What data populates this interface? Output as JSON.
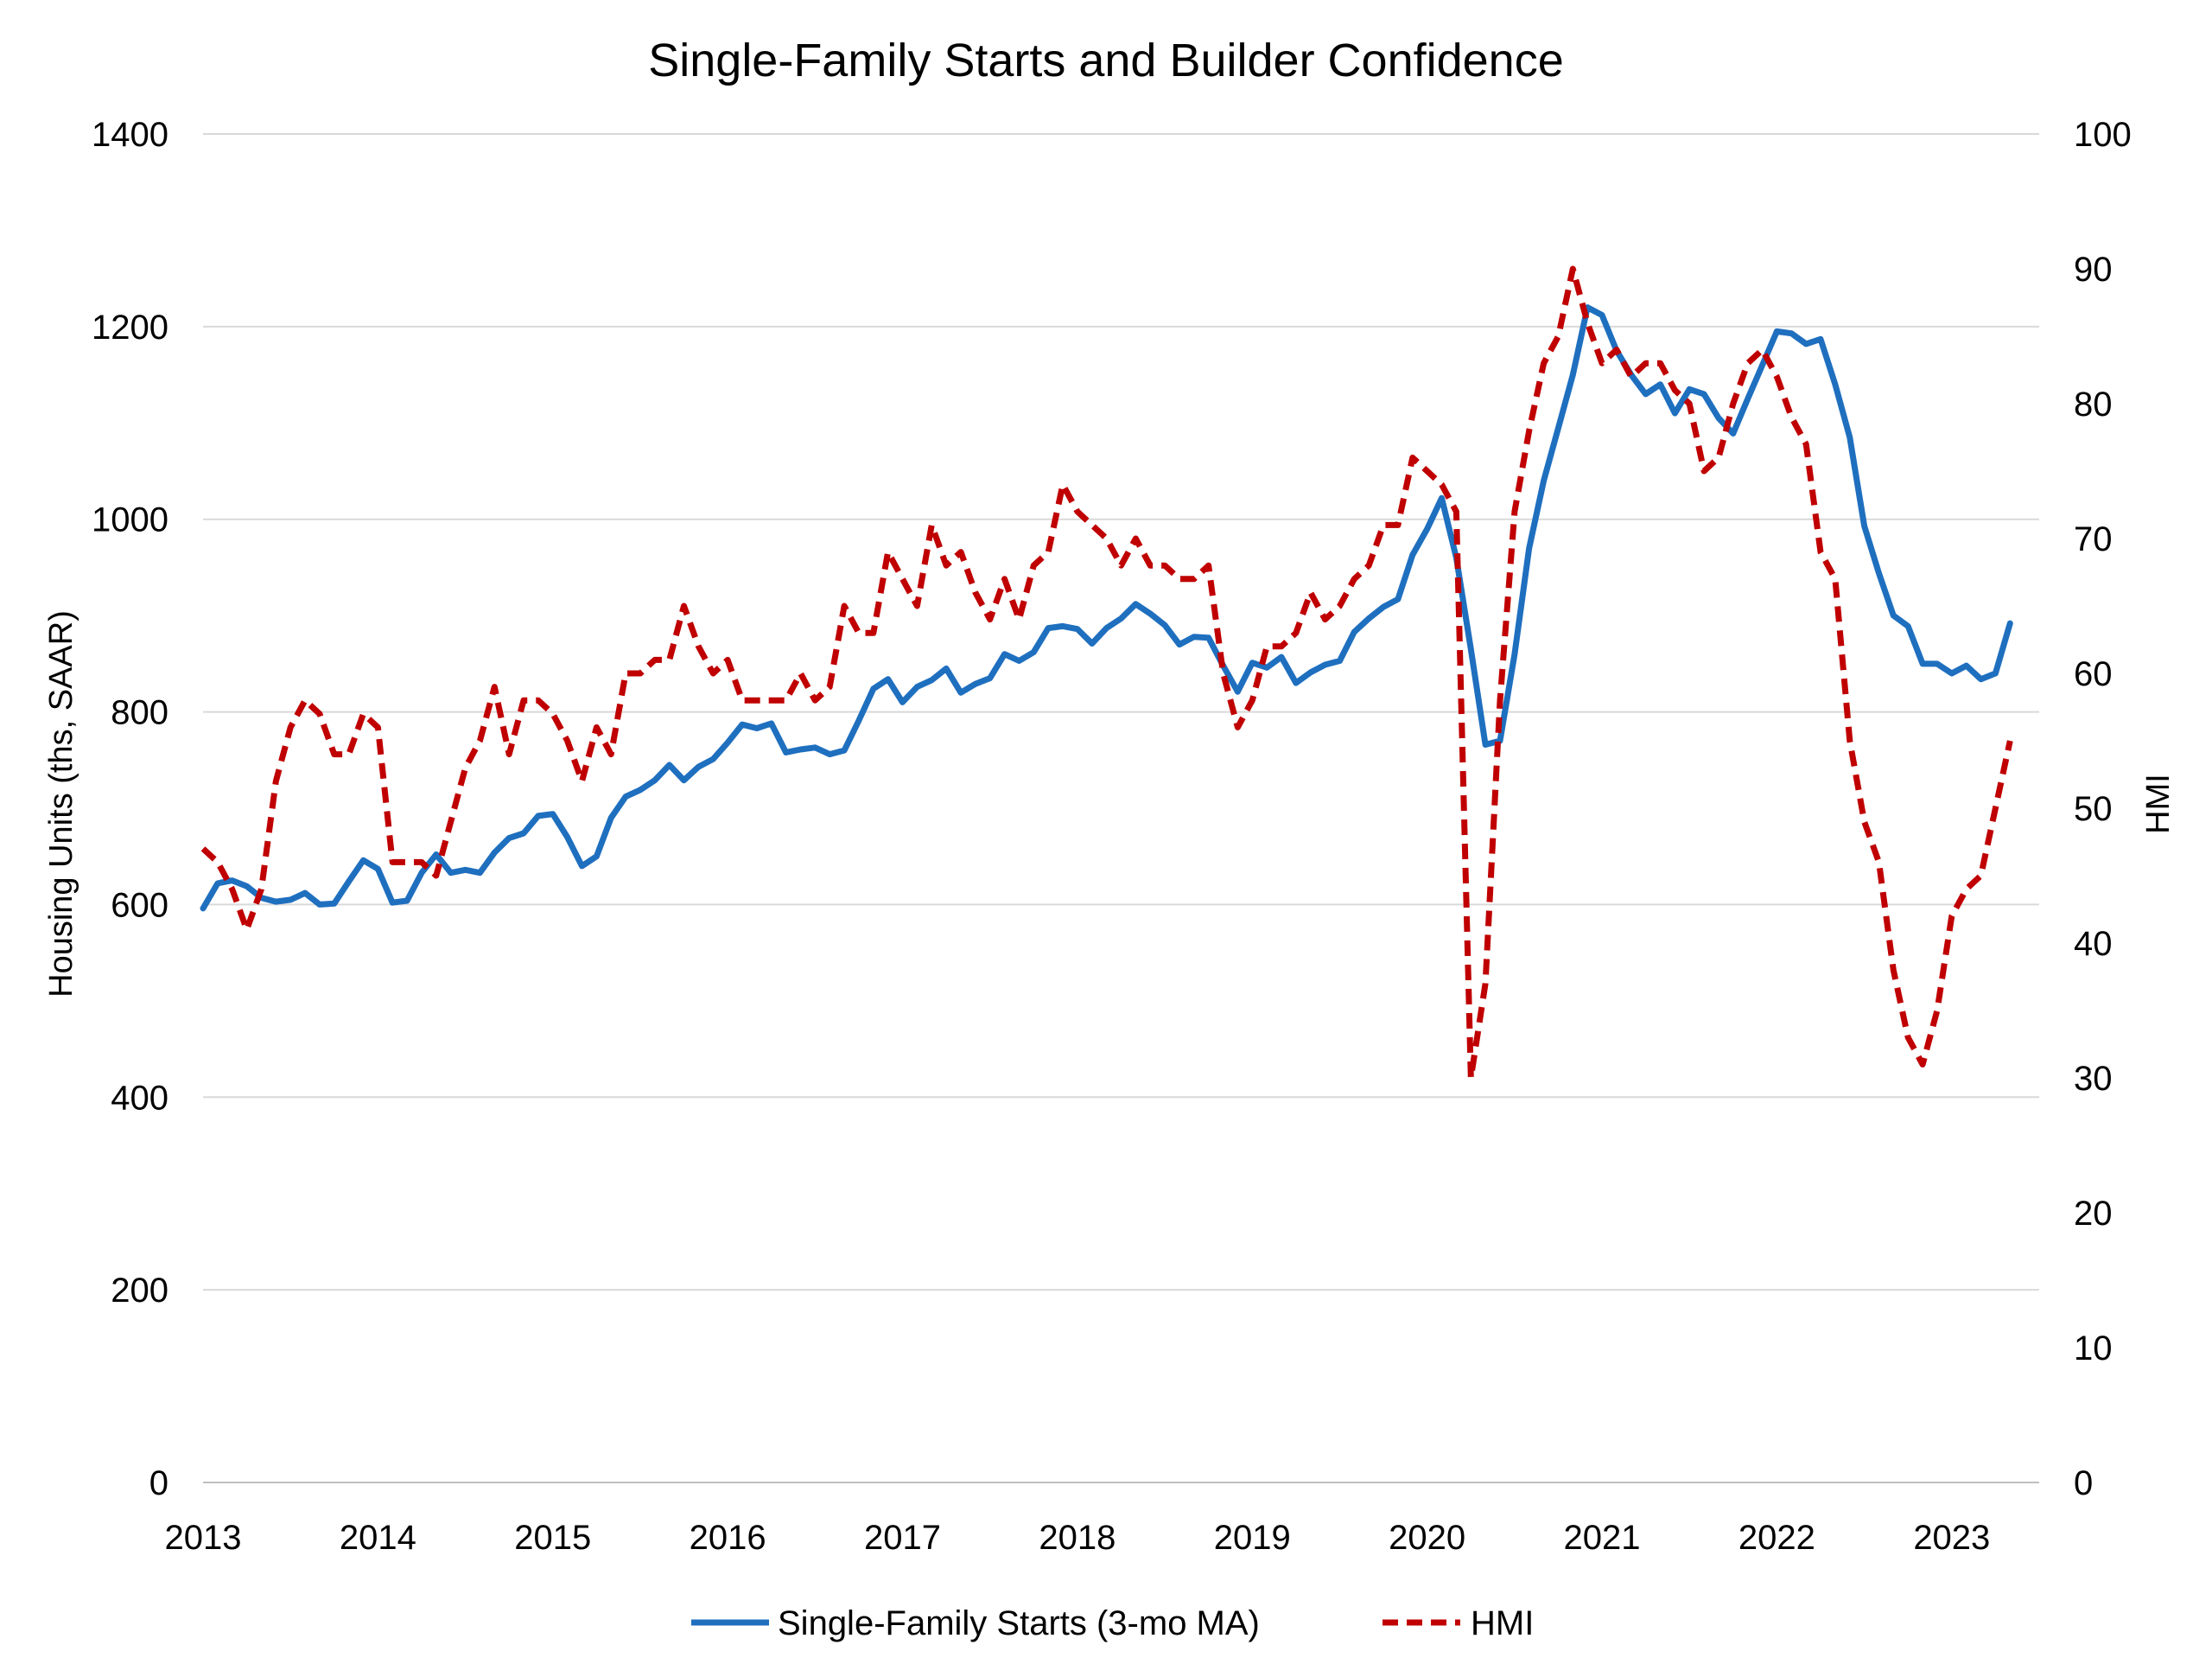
{
  "chart_data": {
    "type": "line",
    "title": "Single-Family Starts and Builder Confidence",
    "xlabel": "",
    "ylabel": "Housing Units (ths, SAAR)",
    "y2label": "HMI",
    "x_ticks": [
      "2013",
      "2014",
      "2015",
      "2016",
      "2017",
      "2018",
      "2019",
      "2020",
      "2021",
      "2022",
      "2023"
    ],
    "x_range": [
      2013.0,
      2023.5
    ],
    "ylim": [
      0,
      1400
    ],
    "y_ticks": [
      "0",
      "200",
      "400",
      "600",
      "800",
      "1000",
      "1200",
      "1400"
    ],
    "y2lim": [
      0,
      100
    ],
    "y2_ticks": [
      "0",
      "10",
      "20",
      "30",
      "40",
      "50",
      "60",
      "70",
      "80",
      "90",
      "100"
    ],
    "grid": "horizontal",
    "legend_position": "bottom",
    "series": [
      {
        "name": "Single-Family Starts (3-mo MA)",
        "axis": "left",
        "color": "#1f6fbf",
        "style": "solid",
        "start": "2013-01",
        "values": [
          596,
          622,
          625,
          619,
          607,
          603,
          605,
          612,
          600,
          601,
          624,
          646,
          637,
          602,
          604,
          633,
          652,
          633,
          636,
          633,
          654,
          669,
          674,
          692,
          694,
          670,
          640,
          650,
          690,
          712,
          719,
          729,
          745,
          729,
          743,
          751,
          768,
          787,
          783,
          788,
          758,
          761,
          763,
          756,
          760,
          791,
          824,
          834,
          810,
          826,
          833,
          845,
          820,
          829,
          835,
          860,
          853,
          862,
          887,
          889,
          886,
          871,
          887,
          897,
          912,
          902,
          890,
          870,
          878,
          877,
          848,
          821,
          851,
          846,
          857,
          830,
          841,
          849,
          853,
          883,
          897,
          909,
          917,
          963,
          990,
          1022,
          960,
          865,
          766,
          770,
          860,
          970,
          1040,
          1095,
          1150,
          1220,
          1212,
          1175,
          1150,
          1130,
          1140,
          1110,
          1135,
          1130,
          1105,
          1089,
          1125,
          1160,
          1195,
          1193,
          1182,
          1187,
          1140,
          1085,
          993,
          944,
          900,
          889,
          850,
          850,
          840,
          848,
          834,
          840,
          892
        ]
      },
      {
        "name": "HMI",
        "axis": "right",
        "color": "#c00000",
        "style": "dashed",
        "start": "2013-01",
        "values": [
          47,
          46,
          44,
          41,
          44,
          52,
          56,
          58,
          57,
          54,
          54,
          57,
          56,
          46,
          46,
          46,
          45,
          49,
          53,
          55,
          59,
          54,
          58,
          58,
          57,
          55,
          52,
          56,
          54,
          60,
          60,
          61,
          61,
          65,
          62,
          60,
          61,
          58,
          58,
          58,
          58,
          60,
          58,
          59,
          65,
          63,
          63,
          69,
          67,
          65,
          71,
          68,
          69,
          66,
          64,
          67,
          64,
          68,
          69,
          74,
          72,
          71,
          70,
          68,
          70,
          68,
          68,
          67,
          67,
          68,
          60,
          56,
          58,
          62,
          62,
          63,
          66,
          64,
          65,
          67,
          68,
          71,
          71,
          76,
          75,
          74,
          72,
          30,
          37,
          58,
          72,
          78,
          83,
          85,
          90,
          86,
          83,
          84,
          82,
          83,
          83,
          81,
          80,
          75,
          76,
          80,
          83,
          84,
          82,
          79,
          77,
          69,
          67,
          55,
          49,
          46,
          38,
          33,
          31,
          35,
          42,
          44,
          45,
          50,
          55
        ]
      }
    ]
  }
}
